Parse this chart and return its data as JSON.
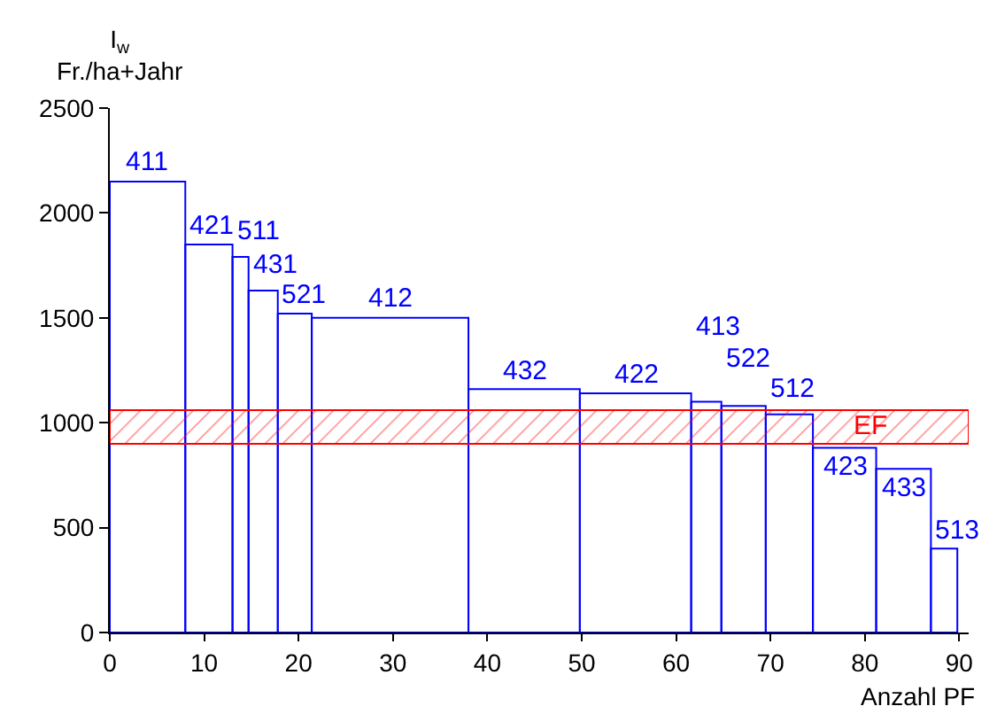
{
  "chart_data": {
    "type": "histogram",
    "xlabel": "Anzahl PF",
    "ylabel": "I$_{w}$\nFr./ha+Jahr",
    "bins": [
      0,
      8,
      13,
      14.7,
      17.8,
      21.4,
      38,
      49.8,
      61.6,
      64.8,
      69.5,
      74.5,
      81.2,
      87,
      89.8
    ],
    "values": [
      2150,
      1850,
      1790,
      1630,
      1520,
      1500,
      1160,
      1140,
      1100,
      1080,
      1040,
      880,
      780,
      400
    ],
    "color": "#0000ff",
    "annotations": [
      {
        "text": "411",
        "x": 4,
        "y": 2150
      },
      {
        "text": "421",
        "x": 10.5,
        "y": 1850
      },
      {
        "text": "511",
        "x": 13.85,
        "y": 1790
      },
      {
        "text": "431",
        "x": 16.25,
        "y": 1630
      },
      {
        "text": "521",
        "x": 19.6,
        "y": 1520
      },
      {
        "text": "412",
        "x": 29.7,
        "y": 1500
      },
      {
        "text": "432",
        "x": 43.9,
        "y": 1160
      },
      {
        "text": "422",
        "x": 55.7,
        "y": 1140
      },
      {
        "text": "413",
        "x": 63.2,
        "y": 1100
      },
      {
        "text": "522",
        "x": 67.15,
        "y": 1080
      },
      {
        "text": "512",
        "x": 72,
        "y": 1040
      },
      {
        "text": "423",
        "x": 77.85,
        "y": 880
      },
      {
        "text": "433",
        "x": 84.1,
        "y": 780
      },
      {
        "text": "513",
        "x": 88.4,
        "y": 400
      }
    ],
    "bands": [
      {
        "axis": "y",
        "from": 900,
        "to": 1060,
        "label": "EF",
        "color": "#ff0000"
      }
    ],
    "xlim": [
      0,
      91
    ],
    "ylim": [
      0,
      2500
    ],
    "xticks": [
      0,
      10,
      20,
      30,
      40,
      50,
      60,
      70,
      80,
      90
    ],
    "yticks": [
      0,
      500,
      1000,
      1500,
      2000,
      2500
    ]
  }
}
